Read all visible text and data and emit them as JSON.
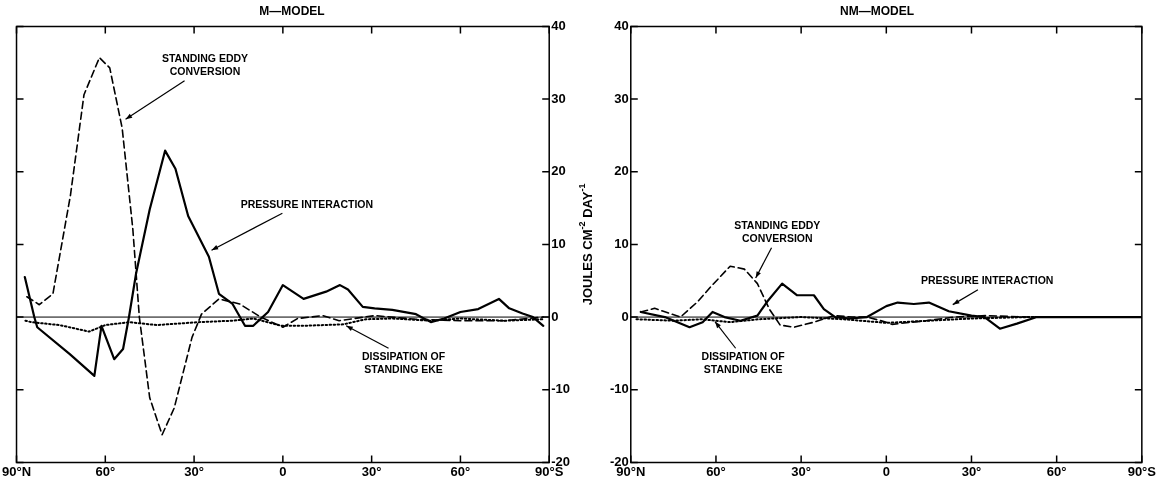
{
  "chart_data": [
    {
      "type": "line",
      "title": "M—MODEL",
      "xlim": [
        90,
        -90
      ],
      "xticks": [
        {
          "value": 90,
          "label": "90°N"
        },
        {
          "value": 60,
          "label": "60°"
        },
        {
          "value": 30,
          "label": "30°"
        },
        {
          "value": 0,
          "label": "0"
        },
        {
          "value": -30,
          "label": "30°"
        },
        {
          "value": -60,
          "label": "60°"
        },
        {
          "value": -90,
          "label": "90°S"
        }
      ],
      "ylim": [
        -20,
        40
      ],
      "yticks": [
        -20,
        -10,
        0,
        10,
        20,
        30,
        40
      ],
      "ref_lines": [
        {
          "axis": "y",
          "value": 0
        }
      ],
      "annotations": [
        {
          "text": "STANDING EDDY\nCONVERSION",
          "x": 54,
          "y": 27
        },
        {
          "text": "PRESSURE INTERACTION",
          "x": 25,
          "y": 9
        },
        {
          "text": "DISSIPATION OF\nSTANDING EKE",
          "x": -20.5,
          "y": -1
        }
      ],
      "series": [
        {
          "color": "#000000",
          "line_style": "solid",
          "x": [
            87.2,
            84,
            83,
            72,
            63.7,
            61.3,
            57,
            54,
            52,
            49.6,
            45,
            39.8,
            36.3,
            32,
            25,
            21.6,
            17,
            12.8,
            10,
            5,
            0,
            -7,
            -14.6,
            -19.3,
            -22,
            -27,
            -31,
            -37,
            -45,
            -50,
            -54.5,
            -60,
            -66,
            -73,
            -76.5,
            -81,
            -84.5,
            -88
          ],
          "values": [
            5.5,
            0,
            -1.4,
            -5.1,
            -8.1,
            -1.2,
            -5.8,
            -4.4,
            0,
            6,
            14.8,
            22.9,
            20.4,
            13.9,
            8.3,
            3.2,
            1.8,
            -1.2,
            -1.2,
            0.7,
            4.4,
            2.5,
            3.5,
            4.4,
            3.8,
            1.4,
            1.2,
            1,
            0.4,
            -0.7,
            -0.2,
            0.7,
            1.1,
            2.5,
            1.2,
            0.5,
            0,
            -1.2
          ]
        },
        {
          "color": "#000000",
          "line_style": "dashed",
          "x": [
            86.5,
            82.3,
            77.7,
            71.8,
            67.2,
            62,
            58.5,
            54.3,
            50.7,
            48.5,
            45,
            40.8,
            36.7,
            30.7,
            27.5,
            21.6,
            14.6,
            7.5,
            0,
            -5,
            -13.5,
            -19,
            -31,
            -45,
            -60,
            -75,
            -88
          ],
          "values": [
            2.8,
            1.7,
            3.2,
            16.7,
            30.6,
            35.7,
            34.3,
            26,
            12.1,
            0,
            -11.1,
            -16.2,
            -12.5,
            -2.8,
            0.4,
            2.5,
            1.8,
            0,
            -1.4,
            -0.2,
            0.2,
            -0.5,
            0.2,
            -0.3,
            -0.5,
            -0.5,
            0
          ]
        },
        {
          "color": "#000000",
          "line_style": "dotted",
          "x": [
            87,
            85,
            75.5,
            65.5,
            60,
            52,
            42.6,
            28.6,
            17,
            10,
            0.5,
            -7,
            -20.5,
            -28,
            -37,
            -50,
            -60,
            -75,
            -88
          ],
          "values": [
            -0.5,
            -0.7,
            -1.1,
            -2,
            -1.1,
            -0.7,
            -1.1,
            -0.7,
            -0.5,
            -0.2,
            -1.2,
            -1.2,
            -1,
            -0.3,
            -0.2,
            -0.5,
            -0.2,
            -0.5,
            -0.3
          ]
        }
      ]
    },
    {
      "type": "line",
      "title": "NM—MODEL",
      "ylabel": "JOULES CM$^{-2}$ DAY$^{-1}$",
      "xlim": [
        90,
        -90
      ],
      "xticks": [
        {
          "value": 90,
          "label": "90°N"
        },
        {
          "value": 60,
          "label": "60°"
        },
        {
          "value": 30,
          "label": "30°"
        },
        {
          "value": 0,
          "label": "0"
        },
        {
          "value": -30,
          "label": "30°"
        },
        {
          "value": -60,
          "label": "60°"
        },
        {
          "value": -90,
          "label": "90°S"
        }
      ],
      "ylim": [
        -20,
        40
      ],
      "yticks": [
        -20,
        -10,
        0,
        10,
        20,
        30,
        40
      ],
      "ref_lines": [
        {
          "axis": "y",
          "value": 0
        }
      ],
      "annotations": [
        {
          "text": "STANDING EDDY\nCONVERSION",
          "x": 46.5,
          "y": 5
        },
        {
          "text": "DISSIPATION OF\nSTANDING EKE",
          "x": 61,
          "y": -0.3
        },
        {
          "text": "PRESSURE INTERACTION",
          "x": -22.5,
          "y": 1.5
        }
      ],
      "series": [
        {
          "color": "#000000",
          "line_style": "solid",
          "x": [
            86.5,
            78,
            69.3,
            64.7,
            61.2,
            57,
            51.4,
            45.4,
            42,
            36.7,
            31.4,
            25.5,
            22,
            18,
            12.8,
            6.8,
            0,
            -4,
            -9.7,
            -15,
            -22,
            -30,
            -34.6,
            -40,
            -46,
            -53,
            -60,
            -90
          ],
          "values": [
            0.7,
            0,
            -1.4,
            -0.7,
            0.7,
            0,
            -0.5,
            0.2,
            2.1,
            4.6,
            3,
            3,
            1.1,
            0,
            -0.2,
            0,
            1.5,
            2,
            1.8,
            2,
            0.8,
            0.2,
            0,
            -1.6,
            -0.9,
            0,
            0,
            0
          ]
        },
        {
          "color": "#000000",
          "line_style": "dashed",
          "x": [
            86.5,
            81.6,
            72.5,
            66.5,
            62,
            55,
            50,
            45.4,
            41.2,
            37.4,
            32.5,
            25.5,
            18.4,
            12,
            6.8,
            0,
            -2,
            -14,
            -24,
            -35,
            -50,
            -90
          ],
          "values": [
            0.7,
            1.2,
            0,
            2.1,
            4.1,
            7,
            6.6,
            4.6,
            1.1,
            -1.1,
            -1.4,
            -0.7,
            0.2,
            0,
            0,
            -0.7,
            -1,
            -0.5,
            0,
            0.2,
            0,
            0
          ]
        },
        {
          "color": "#000000",
          "line_style": "dotted",
          "x": [
            88,
            75,
            65,
            55,
            45,
            30,
            15,
            0,
            -15,
            -30,
            -50,
            -90
          ],
          "values": [
            -0.3,
            -0.5,
            -0.3,
            -0.7,
            -0.3,
            0,
            -0.3,
            -0.8,
            -0.5,
            -0.2,
            0,
            0
          ]
        }
      ]
    }
  ]
}
